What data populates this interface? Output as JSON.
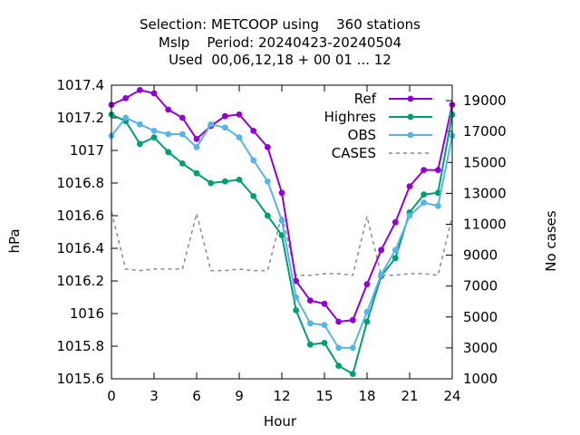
{
  "chart_data": {
    "type": "line",
    "title_lines": [
      "Selection: METCOOP using    360 stations",
      "Mslp    Period: 20240423-20240504",
      "Used  00,06,12,18 + 00 01 ... 12"
    ],
    "xlabel": "Hour",
    "ylabel": "hPa",
    "y2label": "No cases",
    "xlim": [
      0,
      24
    ],
    "ylim": [
      1015.6,
      1017.4
    ],
    "y2lim": [
      1000,
      20000
    ],
    "x_ticks": [
      "0",
      "3",
      "6",
      "9",
      "12",
      "15",
      "18",
      "21",
      "24"
    ],
    "y_ticks": [
      "1015.6",
      "1015.8",
      "1016",
      "1016.2",
      "1016.4",
      "1016.6",
      "1016.8",
      "1017",
      "1017.2",
      "1017.4"
    ],
    "y2_ticks": [
      "1000",
      "3000",
      "5000",
      "7000",
      "9000",
      "11000",
      "13000",
      "15000",
      "17000",
      "19000"
    ],
    "legend_position": "top-right",
    "x": [
      0,
      1,
      2,
      3,
      4,
      5,
      6,
      7,
      8,
      9,
      10,
      11,
      12,
      13,
      14,
      15,
      16,
      17,
      18,
      19,
      20,
      21,
      22,
      23,
      24
    ],
    "series": [
      {
        "name": "Ref",
        "color": "#9400d3",
        "axis": "left",
        "marker": true,
        "values": [
          1017.28,
          1017.32,
          1017.37,
          1017.35,
          1017.25,
          1017.2,
          1017.07,
          1017.15,
          1017.21,
          1017.22,
          1017.12,
          1017.02,
          1016.74,
          1016.2,
          1016.08,
          1016.06,
          1015.95,
          1015.96,
          1016.18,
          1016.39,
          1016.56,
          1016.78,
          1016.88,
          1016.88,
          1017.28
        ]
      },
      {
        "name": "Highres",
        "color": "#009e73",
        "axis": "left",
        "marker": true,
        "values": [
          1017.22,
          1017.18,
          1017.04,
          1017.08,
          1016.99,
          1016.92,
          1016.86,
          1016.8,
          1016.81,
          1016.82,
          1016.72,
          1016.6,
          1016.48,
          1016.02,
          1015.81,
          1015.82,
          1015.68,
          1015.63,
          1015.95,
          1016.23,
          1016.34,
          1016.62,
          1016.73,
          1016.74,
          1017.22
        ]
      },
      {
        "name": "OBS",
        "color": "#56b4e9",
        "axis": "left",
        "marker": true,
        "values": [
          1017.09,
          1017.2,
          1017.16,
          1017.12,
          1017.1,
          1017.1,
          1017.02,
          1017.16,
          1017.14,
          1017.08,
          1016.94,
          1016.81,
          1016.57,
          1016.1,
          1015.94,
          1015.93,
          1015.79,
          1015.79,
          1016.01,
          1016.24,
          1016.39,
          1016.6,
          1016.68,
          1016.66,
          1017.09
        ]
      },
      {
        "name": "CASES",
        "color": "#8a8a8a",
        "axis": "right",
        "marker": false,
        "dashed": true,
        "values": [
          11800,
          8100,
          8000,
          8100,
          8100,
          8100,
          11700,
          8000,
          8000,
          8100,
          8000,
          8000,
          11600,
          7700,
          7700,
          7800,
          7800,
          7700,
          11500,
          7700,
          7700,
          7800,
          7800,
          7700,
          11500
        ]
      }
    ]
  }
}
